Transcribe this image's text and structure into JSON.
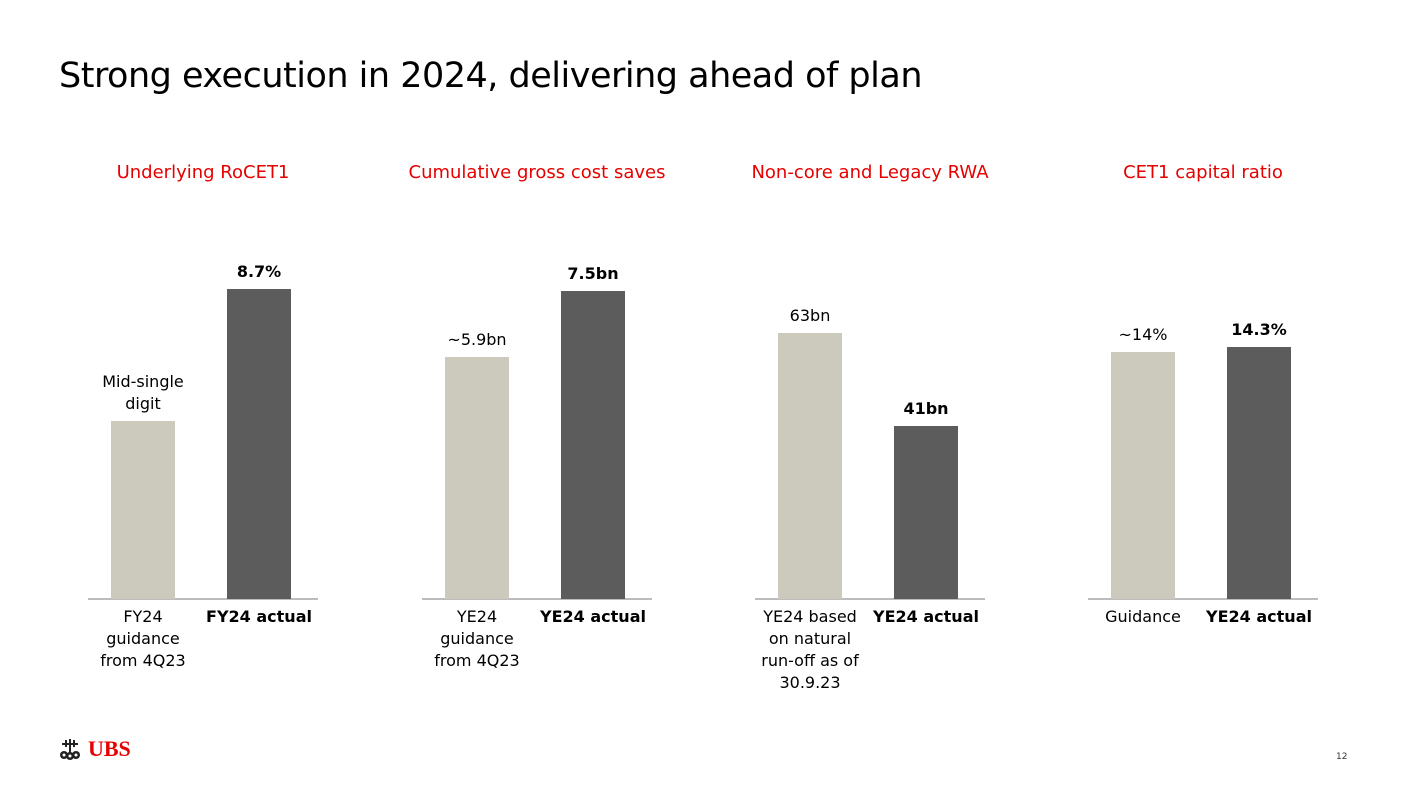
{
  "page": {
    "title": "Strong execution in 2024, delivering ahead of plan",
    "page_number": "12",
    "logo_text": "UBS"
  },
  "colors": {
    "accent": "#e60000",
    "guidance_bar": "#ccc9bd",
    "actual_bar": "#5b5c5b"
  },
  "chart_data": [
    {
      "type": "bar",
      "title": "Underlying RoCET1",
      "categories": [
        "FY24 guidance from 4Q23",
        "FY24 actual"
      ],
      "values": [
        5,
        8.7
      ],
      "data_labels": [
        "Mid-single digit",
        "8.7%"
      ],
      "ylim": [
        0,
        9.8
      ],
      "grid": false
    },
    {
      "type": "bar",
      "title": "Cumulative gross cost saves",
      "categories": [
        "YE24 guidance from 4Q23",
        "YE24 actual"
      ],
      "values": [
        5.9,
        7.5
      ],
      "data_labels": [
        "~5.9bn",
        "7.5bn"
      ],
      "ylim": [
        0,
        8.5
      ],
      "grid": false
    },
    {
      "type": "bar",
      "title": "Non-core and Legacy RWA",
      "categories": [
        "YE24 based on natural run-off as of 30.9.23",
        "YE24 actual"
      ],
      "values": [
        63,
        41
      ],
      "data_labels": [
        "63bn",
        "41bn"
      ],
      "ylim": [
        0,
        82.6
      ],
      "grid": false
    },
    {
      "type": "bar",
      "title": "CET1 capital ratio",
      "categories": [
        "Guidance",
        "YE24 actual"
      ],
      "values": [
        14,
        14.3
      ],
      "data_labels": [
        "~14%",
        "14.3%"
      ],
      "ylim": [
        0,
        19.8
      ],
      "grid": false
    }
  ]
}
